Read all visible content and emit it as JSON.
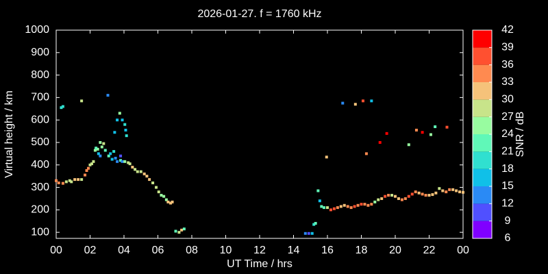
{
  "chart_data": {
    "type": "scatter",
    "title": "2026-01-27. f = 1760 kHz",
    "xlabel": "UT Time / hrs",
    "ylabel": "Virtual height / km",
    "xlim": [
      0,
      24
    ],
    "xticks": [
      {
        "value": 0,
        "label": "00"
      },
      {
        "value": 2,
        "label": "02"
      },
      {
        "value": 4,
        "label": "04"
      },
      {
        "value": 6,
        "label": "06"
      },
      {
        "value": 8,
        "label": "08"
      },
      10,
      12,
      14,
      16,
      18,
      20,
      22,
      {
        "value": 24,
        "label": "00"
      }
    ],
    "ylim": [
      73,
      1000
    ],
    "yticks": [
      100,
      200,
      300,
      400,
      500,
      600,
      700,
      800,
      900,
      1000
    ],
    "x": [
      0,
      0.15,
      0.4,
      0.6,
      0.8,
      0.9,
      1.1,
      1.3,
      1.5,
      1.7,
      1.8,
      1.9,
      2.0,
      2.1,
      2.2,
      2.3,
      2.45,
      2.6,
      2.7,
      2.8,
      2.9,
      3.1,
      3.3,
      3.5,
      3.6,
      3.8,
      3.9,
      4.05,
      4.25,
      4.35,
      4.5,
      4.65,
      4.8,
      5.0,
      5.2,
      5.35,
      5.5,
      5.7,
      5.9,
      6.05,
      6.2,
      6.35,
      6.5,
      6.6,
      6.75,
      6.85,
      7.05,
      7.25,
      7.4,
      7.55,
      0.3,
      0.4,
      1.5,
      3.05,
      3.45,
      3.6,
      3.75,
      3.9,
      4.05,
      4.1,
      4.15,
      3.4,
      3.2,
      2.5,
      2.6,
      3.8,
      2.35,
      14.7,
      14.9,
      15.1,
      15.2,
      15.3,
      15.45,
      15.55,
      15.65,
      15.8,
      16.0,
      16.2,
      16.4,
      16.6,
      16.8,
      17.0,
      17.2,
      17.4,
      17.6,
      17.8,
      18.0,
      18.2,
      18.4,
      18.6,
      18.8,
      19.0,
      19.2,
      19.4,
      19.6,
      19.8,
      20.0,
      20.2,
      20.4,
      20.6,
      20.8,
      21.0,
      21.2,
      21.4,
      21.6,
      21.8,
      22.0,
      22.2,
      22.4,
      22.6,
      22.8,
      23.0,
      23.2,
      23.4,
      23.6,
      23.8,
      24.0,
      15.95,
      16.9,
      17.65,
      18.1,
      18.6,
      18.3,
      19.1,
      19.5,
      20.8,
      21.25,
      21.6,
      22.1,
      22.35,
      23.05
    ],
    "values": [
      330,
      320,
      318,
      325,
      330,
      325,
      335,
      335,
      335,
      355,
      375,
      385,
      400,
      405,
      415,
      465,
      470,
      500,
      480,
      495,
      465,
      440,
      425,
      430,
      415,
      420,
      415,
      415,
      410,
      405,
      390,
      380,
      370,
      370,
      360,
      350,
      335,
      320,
      300,
      280,
      265,
      260,
      245,
      235,
      230,
      235,
      105,
      100,
      110,
      115,
      655,
      660,
      685,
      710,
      545,
      600,
      630,
      600,
      580,
      555,
      530,
      460,
      450,
      450,
      440,
      440,
      475,
      95,
      95,
      95,
      135,
      140,
      285,
      240,
      215,
      210,
      210,
      200,
      205,
      210,
      215,
      220,
      215,
      210,
      215,
      220,
      225,
      225,
      220,
      225,
      235,
      245,
      250,
      260,
      265,
      265,
      260,
      250,
      245,
      250,
      260,
      270,
      280,
      275,
      270,
      265,
      265,
      268,
      275,
      295,
      285,
      280,
      290,
      290,
      285,
      280,
      278,
      435,
      675,
      670,
      685,
      685,
      450,
      500,
      540,
      490,
      555,
      545,
      535,
      570,
      568
    ],
    "snr": [
      33,
      33,
      33,
      27,
      27,
      27,
      30,
      30,
      27,
      33,
      33,
      33,
      27,
      27,
      27,
      24,
      24,
      24,
      24,
      27,
      21,
      21,
      15,
      12,
      12,
      21,
      12,
      24,
      27,
      27,
      30,
      27,
      27,
      27,
      30,
      30,
      30,
      27,
      27,
      27,
      24,
      24,
      24,
      30,
      30,
      30,
      21,
      27,
      30,
      21,
      18,
      18,
      27,
      12,
      15,
      15,
      24,
      15,
      18,
      15,
      18,
      18,
      15,
      15,
      12,
      9,
      21,
      12,
      9,
      15,
      18,
      21,
      21,
      15,
      21,
      21,
      27,
      36,
      36,
      33,
      30,
      30,
      33,
      33,
      36,
      33,
      36,
      33,
      33,
      33,
      24,
      27,
      30,
      36,
      33,
      27,
      30,
      30,
      33,
      33,
      36,
      36,
      33,
      30,
      33,
      33,
      30,
      30,
      30,
      27,
      30,
      33,
      33,
      30,
      30,
      30,
      30,
      30,
      12,
      30,
      36,
      15,
      33,
      42,
      39,
      24,
      33,
      39,
      24,
      21,
      36
    ],
    "colorbar": {
      "label": "SNR / dB",
      "lim": [
        6,
        42
      ],
      "ticks": [
        6,
        9,
        12,
        15,
        18,
        21,
        24,
        27,
        30,
        33,
        36,
        39,
        42
      ],
      "colors": [
        "#8000ff",
        "#5050ff",
        "#2a8af5",
        "#10c0e8",
        "#30e0d0",
        "#60f8b8",
        "#98fca0",
        "#c8e48a",
        "#f5c27a",
        "#ff8a50",
        "#ff5030",
        "#ff0000"
      ]
    }
  }
}
